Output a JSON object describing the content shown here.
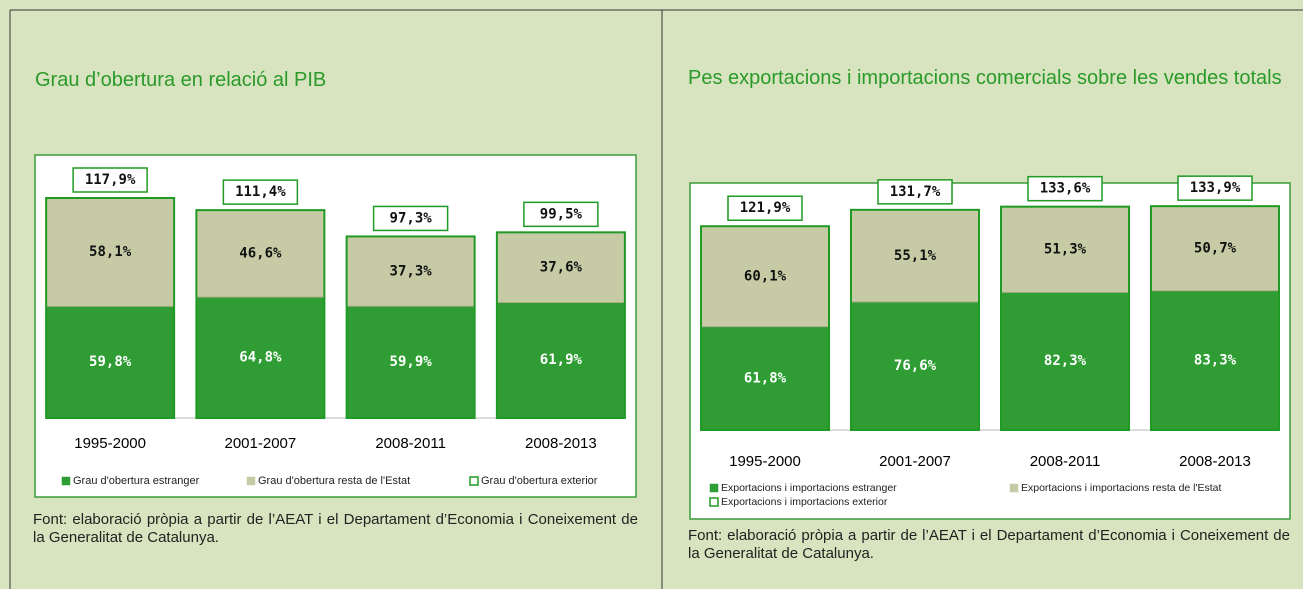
{
  "chart_data": [
    {
      "type": "bar",
      "stacked": true,
      "title": "Grau d’obertura en relació al PIB",
      "categories": [
        "1995-2000",
        "2001-2007",
        "2008-2011",
        "2008-2013"
      ],
      "series": [
        {
          "name": "Grau d'obertura estranger",
          "color": "#2f9d34",
          "values": [
            59.8,
            64.8,
            59.9,
            61.9
          ],
          "value_labels": [
            "59,8%",
            "64,8%",
            "59,9%",
            "61,9%"
          ]
        },
        {
          "name": "Grau d'obertura resta de l'Estat",
          "color": "#c7cba5",
          "values": [
            58.1,
            46.6,
            37.3,
            37.6
          ],
          "value_labels": [
            "58,1%",
            "46,6%",
            "37,3%",
            "37,6%"
          ]
        },
        {
          "name": "Grau d'obertura exterior",
          "color": "#1f9a24",
          "outline": true,
          "values": [
            117.9,
            111.4,
            97.3,
            99.5
          ],
          "value_labels": [
            "117,9%",
            "111,4%",
            "97,3%",
            "99,5%"
          ]
        }
      ],
      "source": "Font: elaboració pròpia a partir de l’AEAT i el Departament d’Economia i Coneixement de la Generalitat de Catalunya."
    },
    {
      "type": "bar",
      "stacked": true,
      "title": "Pes exportacions i importacions comercials sobre les vendes totals",
      "categories": [
        "1995-2000",
        "2001-2007",
        "2008-2011",
        "2008-2013"
      ],
      "series": [
        {
          "name": "Exportacions i importacions estranger",
          "color": "#2f9d34",
          "values": [
            61.8,
            76.6,
            82.3,
            83.3
          ],
          "value_labels": [
            "61,8%",
            "76,6%",
            "82,3%",
            "83,3%"
          ]
        },
        {
          "name": "Exportacions i importacions resta de l'Estat",
          "color": "#c7cba5",
          "values": [
            60.1,
            55.1,
            51.3,
            50.7
          ],
          "value_labels": [
            "60,1%",
            "55,1%",
            "51,3%",
            "50,7%"
          ]
        },
        {
          "name": "Exportacions i importacions exterior",
          "color": "#1f9a24",
          "outline": true,
          "values": [
            121.9,
            131.7,
            133.6,
            133.9
          ],
          "value_labels": [
            "121,9%",
            "131,7%",
            "133,6%",
            "133,9%"
          ]
        }
      ],
      "source": "Font: elaboració pròpia a partir de l’AEAT i el Departament d’Economia i Coneixement de la Generalitat de Catalunya."
    }
  ]
}
